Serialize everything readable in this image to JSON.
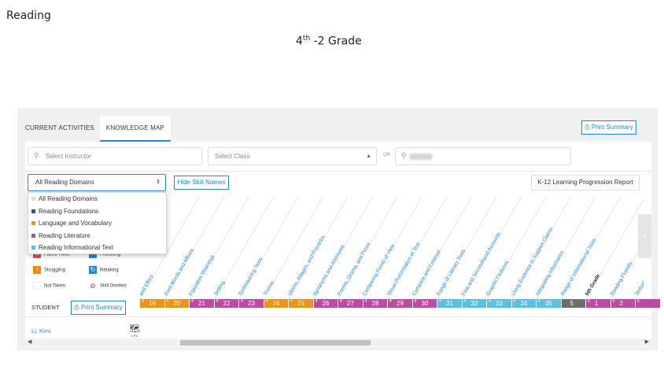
{
  "doc": {
    "title": "Reading",
    "grade_num": "4",
    "grade_sup": "th",
    "grade_rest": " -2 Grade"
  },
  "tabs": [
    {
      "label": "CURRENT ACTIVITIES",
      "active": false
    },
    {
      "label": "KNOWLEDGE MAP",
      "active": true
    }
  ],
  "print_summary_top": "Print Summary",
  "filters": {
    "instructor_placeholder": "Select Instructor",
    "class_placeholder": "Select Class",
    "or_label": "OR"
  },
  "domain_select": {
    "value": "All Reading Domains"
  },
  "hide_skill_names": "Hide Skill Names",
  "k12_report": "K-12 Learning Progression Report",
  "dropdown_options": [
    {
      "label": "All Reading Domains",
      "color": "#d9d9d9"
    },
    {
      "label": "Reading Foundations",
      "color": "#3f4a8a"
    },
    {
      "label": "Language and Vocabulary",
      "color": "#e8951b"
    },
    {
      "label": "Reading Literature",
      "color": "#b84ea3"
    },
    {
      "label": "Reading Informational Text",
      "color": "#5bc0de"
    }
  ],
  "legend": {
    "failed_twice": {
      "label": "Failed Twice",
      "color": "#d9534f"
    },
    "practicing": {
      "label": "Practicing",
      "color": "#1e88e5"
    },
    "struggling": {
      "label": "Struggling",
      "color": "#f0880a"
    },
    "retaking": {
      "label": "Retaking",
      "color": "#1e88e5"
    },
    "not_taken": {
      "label": "Not Taken"
    },
    "skill_omitted": {
      "label": "Skill Omitted"
    }
  },
  "skills": [
    {
      "name": "and Effect",
      "grade": false
    },
    {
      "name": "Root Words and Affixes",
      "grade": false
    },
    {
      "name": "Figurative Meanings",
      "grade": false
    },
    {
      "name": "Setting",
      "grade": false
    },
    {
      "name": "Summarizing Texts",
      "grade": false
    },
    {
      "name": "Theme",
      "grade": false
    },
    {
      "name": "Idioms, Adages, and Proverbs",
      "grade": false
    },
    {
      "name": "Synonyms and Antonyms",
      "grade": false
    },
    {
      "name": "Poems, Drama, and Prose",
      "grade": false
    },
    {
      "name": "Comparing Points of View",
      "grade": false
    },
    {
      "name": "Visual Presentation of Text",
      "grade": false
    },
    {
      "name": "Compare and Contrast",
      "grade": false
    },
    {
      "name": "Range of Literary Texts",
      "grade": false
    },
    {
      "name": "First and Secondhand Accounts",
      "grade": false
    },
    {
      "name": "Graphic Features",
      "grade": false
    },
    {
      "name": "Using Evidence to Support Claims",
      "grade": false
    },
    {
      "name": "Integrating Information",
      "grade": false
    },
    {
      "name": "Range of Informational Texts",
      "grade": false
    },
    {
      "name": "5th Grade",
      "grade": true
    },
    {
      "name": "Reading Fluently",
      "grade": false
    },
    {
      "name": "Textual Evidence",
      "grade": false
    }
  ],
  "strip_cells": [
    {
      "lvl": "4",
      "num": "19",
      "color": "#e8951b"
    },
    {
      "lvl": "4",
      "num": "20",
      "color": "#e8951b"
    },
    {
      "lvl": "4",
      "num": "21",
      "color": "#b84ea3"
    },
    {
      "lvl": "4",
      "num": "22",
      "color": "#b84ea3"
    },
    {
      "lvl": "4",
      "num": "23",
      "color": "#b84ea3"
    },
    {
      "lvl": "4",
      "num": "24",
      "color": "#e8951b"
    },
    {
      "lvl": "4",
      "num": "25",
      "color": "#e8951b"
    },
    {
      "lvl": "4",
      "num": "26",
      "color": "#b84ea3"
    },
    {
      "lvl": "4",
      "num": "27",
      "color": "#b84ea3"
    },
    {
      "lvl": "4",
      "num": "28",
      "color": "#b84ea3"
    },
    {
      "lvl": "4",
      "num": "29",
      "color": "#b84ea3"
    },
    {
      "lvl": "4",
      "num": "30",
      "color": "#b84ea3"
    },
    {
      "lvl": "4",
      "num": "31",
      "color": "#5bc0de"
    },
    {
      "lvl": "4",
      "num": "32",
      "color": "#5bc0de"
    },
    {
      "lvl": "4",
      "num": "33",
      "color": "#5bc0de"
    },
    {
      "lvl": "4",
      "num": "34",
      "color": "#5bc0de"
    },
    {
      "lvl": "4",
      "num": "35",
      "color": "#5bc0de"
    },
    {
      "lvl": "",
      "num": "5",
      "color": "#6d6d6d"
    },
    {
      "lvl": "5",
      "num": "1",
      "color": "#b84ea3"
    },
    {
      "lvl": "5",
      "num": "2",
      "color": "#b84ea3"
    },
    {
      "lvl": "5",
      "num": "",
      "color": "#b84ea3"
    }
  ],
  "student": {
    "header": "STUDENT",
    "print_summary": "Print Summary",
    "name": "Li, Kimi",
    "map_label": "LP3"
  }
}
